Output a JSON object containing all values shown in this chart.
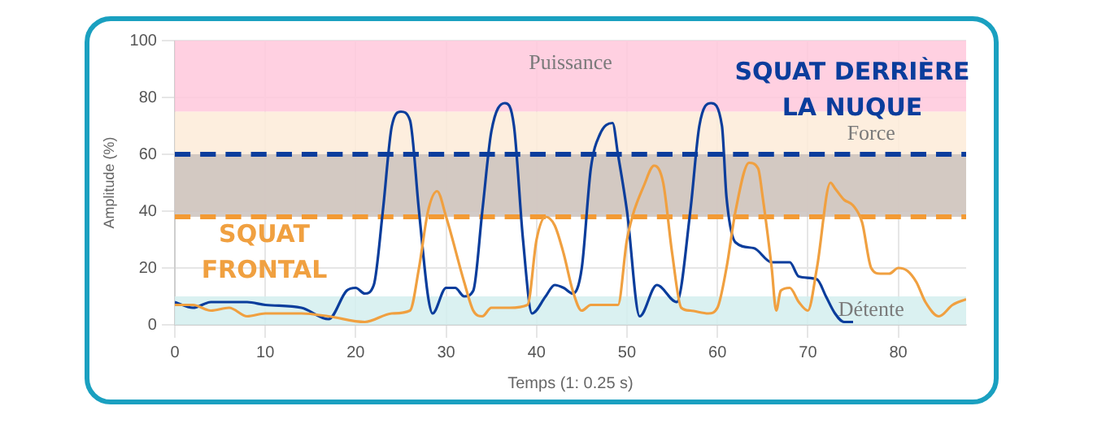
{
  "chart_data": {
    "type": "line",
    "xlabel": "Temps (1: 0.25 s)",
    "ylabel": "Amplitude (%)",
    "xlim": [
      0,
      87.5
    ],
    "xticks": [
      0,
      10,
      20,
      30,
      40,
      50,
      60,
      70,
      80
    ],
    "ylim": [
      0,
      100
    ],
    "yticks": [
      0,
      20,
      40,
      60,
      80,
      100
    ],
    "grid": true,
    "legend": false,
    "marker": "none",
    "bands": [
      {
        "axis": "y",
        "from": 75,
        "to": 100,
        "label": "Puissance",
        "color": "#ffc8dc"
      },
      {
        "axis": "y",
        "from": 40,
        "to": 75,
        "label": "Force",
        "color": "#fdebd8"
      },
      {
        "axis": "y",
        "from": 0,
        "to": 10,
        "label": "Détente",
        "color": "#d3efef"
      },
      {
        "axis": "y",
        "from": 38,
        "to": 60,
        "color": "#cbc2bd"
      }
    ],
    "ref_lines": [
      {
        "axis": "y",
        "value": 60,
        "color": "#0a3d9c",
        "line_style": "dashed"
      },
      {
        "axis": "y",
        "value": 38,
        "color": "#f39a34",
        "line_style": "dashed"
      }
    ],
    "series": [
      {
        "name": "SQUAT FRONTAL",
        "color": "#f0a040",
        "x": [
          0,
          2,
          4,
          6,
          8,
          10,
          14,
          17,
          21,
          24,
          26,
          27,
          28,
          29,
          30,
          32,
          33,
          34,
          35,
          37,
          39,
          40,
          41,
          42,
          43,
          44,
          45,
          46,
          48,
          49,
          50,
          52,
          53,
          54,
          55,
          56,
          57,
          59,
          60,
          61,
          62,
          63.5,
          64.5,
          65,
          66,
          66.5,
          67,
          68,
          69,
          70,
          71,
          72.5,
          73,
          74,
          75,
          76,
          77,
          78,
          79,
          80,
          81,
          82,
          83,
          84.5,
          86,
          87.5
        ],
        "values": [
          7,
          7,
          5,
          6,
          3,
          4,
          4,
          3,
          1,
          4,
          5,
          20,
          40,
          47,
          38,
          15,
          5,
          3,
          6,
          6,
          7,
          30,
          38,
          35,
          25,
          12,
          5,
          7,
          7,
          7,
          30,
          50,
          56,
          50,
          25,
          6,
          5,
          4,
          6,
          20,
          40,
          57,
          55,
          45,
          20,
          5,
          12,
          13,
          8,
          5,
          20,
          50,
          48,
          44,
          42,
          36,
          20,
          18,
          18,
          20,
          19,
          15,
          8,
          3,
          7,
          9
        ]
      },
      {
        "name": "SQUAT DERRIÈRE LA NUQUE",
        "color": "#0a3d9c",
        "x": [
          0,
          2,
          4,
          8,
          10,
          14,
          17,
          19,
          20,
          21,
          22,
          23,
          24,
          25,
          26,
          27,
          28,
          28.5,
          30,
          31,
          32,
          33,
          34,
          35,
          36.5,
          37.5,
          38.5,
          39.5,
          41,
          42,
          43,
          44,
          45,
          46,
          47,
          48.4,
          49,
          50,
          51.4,
          53.3,
          55.5,
          57,
          58,
          59.3,
          60.5,
          61,
          62,
          64,
          66,
          68,
          69,
          71,
          72,
          73,
          74,
          75
        ],
        "values": [
          8,
          6,
          8,
          8,
          7,
          6,
          2,
          12,
          13,
          11,
          14,
          40,
          70,
          75,
          72,
          40,
          10,
          4,
          13,
          13,
          10,
          12,
          40,
          68,
          78,
          70,
          30,
          4,
          10,
          14,
          13,
          11,
          20,
          55,
          67,
          71,
          60,
          40,
          3,
          14,
          8,
          40,
          70,
          78,
          70,
          45,
          29,
          27,
          22,
          22,
          17,
          16,
          10,
          4,
          1,
          1
        ]
      }
    ]
  }
}
